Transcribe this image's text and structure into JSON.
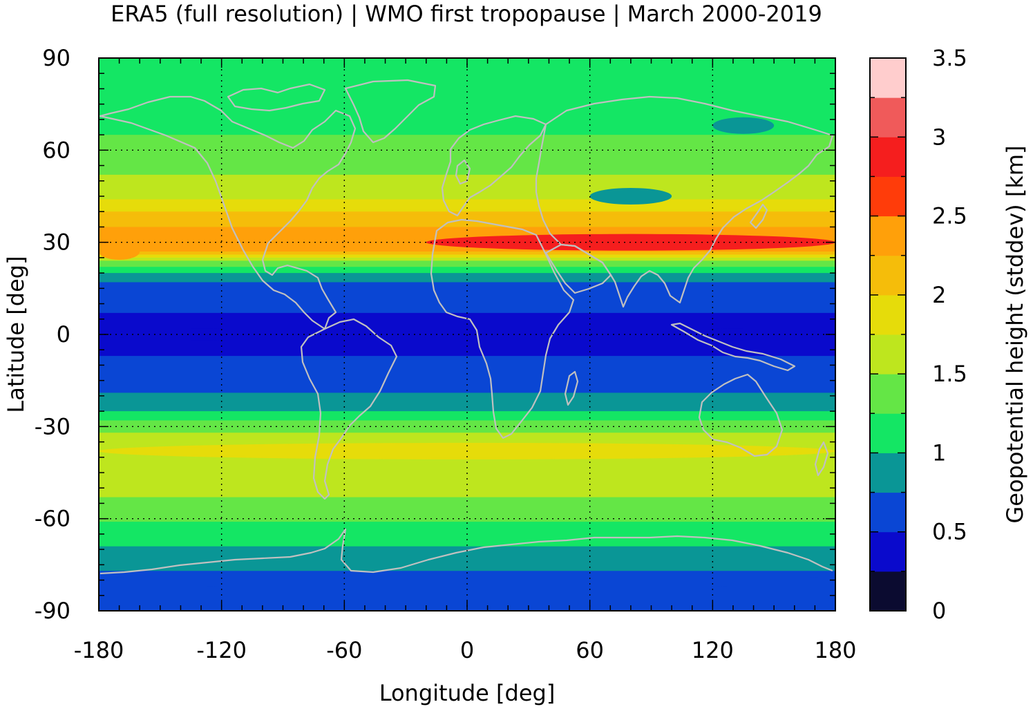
{
  "title": "ERA5 (full resolution) | WMO first tropopause | March 2000-2019",
  "chart_data": {
    "type": "heatmap",
    "title": "ERA5 (full resolution) | WMO first tropopause | March 2000-2019",
    "xlabel": "Longitude [deg]",
    "ylabel": "Latitude [deg]",
    "xlim": [
      -180,
      180
    ],
    "ylim": [
      -90,
      90
    ],
    "x_ticks": [
      "-180",
      "-120",
      "-60",
      "0",
      "60",
      "120",
      "180"
    ],
    "y_ticks": [
      "90",
      "60",
      "30",
      "0",
      "-30",
      "-60",
      "-90"
    ],
    "grid": true,
    "coastlines": "gray",
    "colorbar": {
      "label": "Geopotential height (stddev) [km]",
      "range": [
        0,
        3.5
      ],
      "ticks": [
        "0",
        "0.5",
        "1",
        "1.5",
        "2",
        "2.5",
        "3",
        "3.5"
      ],
      "levels": [
        0,
        0.25,
        0.5,
        0.75,
        1.0,
        1.25,
        1.5,
        1.75,
        2.0,
        2.25,
        2.5,
        2.75,
        3.0,
        3.25,
        3.5
      ],
      "colors": [
        "#0b0b30",
        "#0a0acc",
        "#0a46d4",
        "#0a9696",
        "#14e664",
        "#64e646",
        "#bee61e",
        "#e6dc0a",
        "#f5bd0a",
        "#ffa00a",
        "#ff3c0a",
        "#f51e1e",
        "#f05a5a",
        "#ffcdcd"
      ]
    },
    "zonal_profile": {
      "lat": [
        90,
        75,
        65,
        55,
        45,
        38,
        32,
        28,
        22,
        15,
        0,
        -15,
        -25,
        -32,
        -40,
        -50,
        -60,
        -70,
        -80,
        -90
      ],
      "value": [
        1.05,
        1.1,
        1.25,
        1.4,
        1.7,
        2.1,
        2.4,
        2.35,
        1.2,
        0.55,
        0.45,
        0.55,
        1.0,
        1.5,
        1.75,
        1.6,
        1.3,
        0.95,
        0.65,
        0.55
      ]
    },
    "features": [
      {
        "name": "subtropical jet maximum",
        "lat": 30,
        "lon_range": [
          -20,
          180
        ],
        "value": 2.75
      },
      {
        "name": "north pacific maximum",
        "lat": 27,
        "lon_range": [
          -180,
          -160
        ],
        "value": 2.3
      },
      {
        "name": "southern midlatitude band",
        "lat": -38,
        "lon_range": [
          -180,
          180
        ],
        "value": 1.8
      },
      {
        "name": "tropical minimum",
        "lat": 0,
        "lon_range": [
          -180,
          180
        ],
        "value": 0.45
      },
      {
        "name": "siberian minimum",
        "lat": 68,
        "lon_range": [
          120,
          150
        ],
        "value": 0.9
      },
      {
        "name": "central asia minimum",
        "lat": 45,
        "lon_range": [
          60,
          100
        ],
        "value": 0.9
      },
      {
        "name": "antarctic interior",
        "lat": -80,
        "lon_range": [
          -180,
          180
        ],
        "value": 0.6
      }
    ]
  }
}
